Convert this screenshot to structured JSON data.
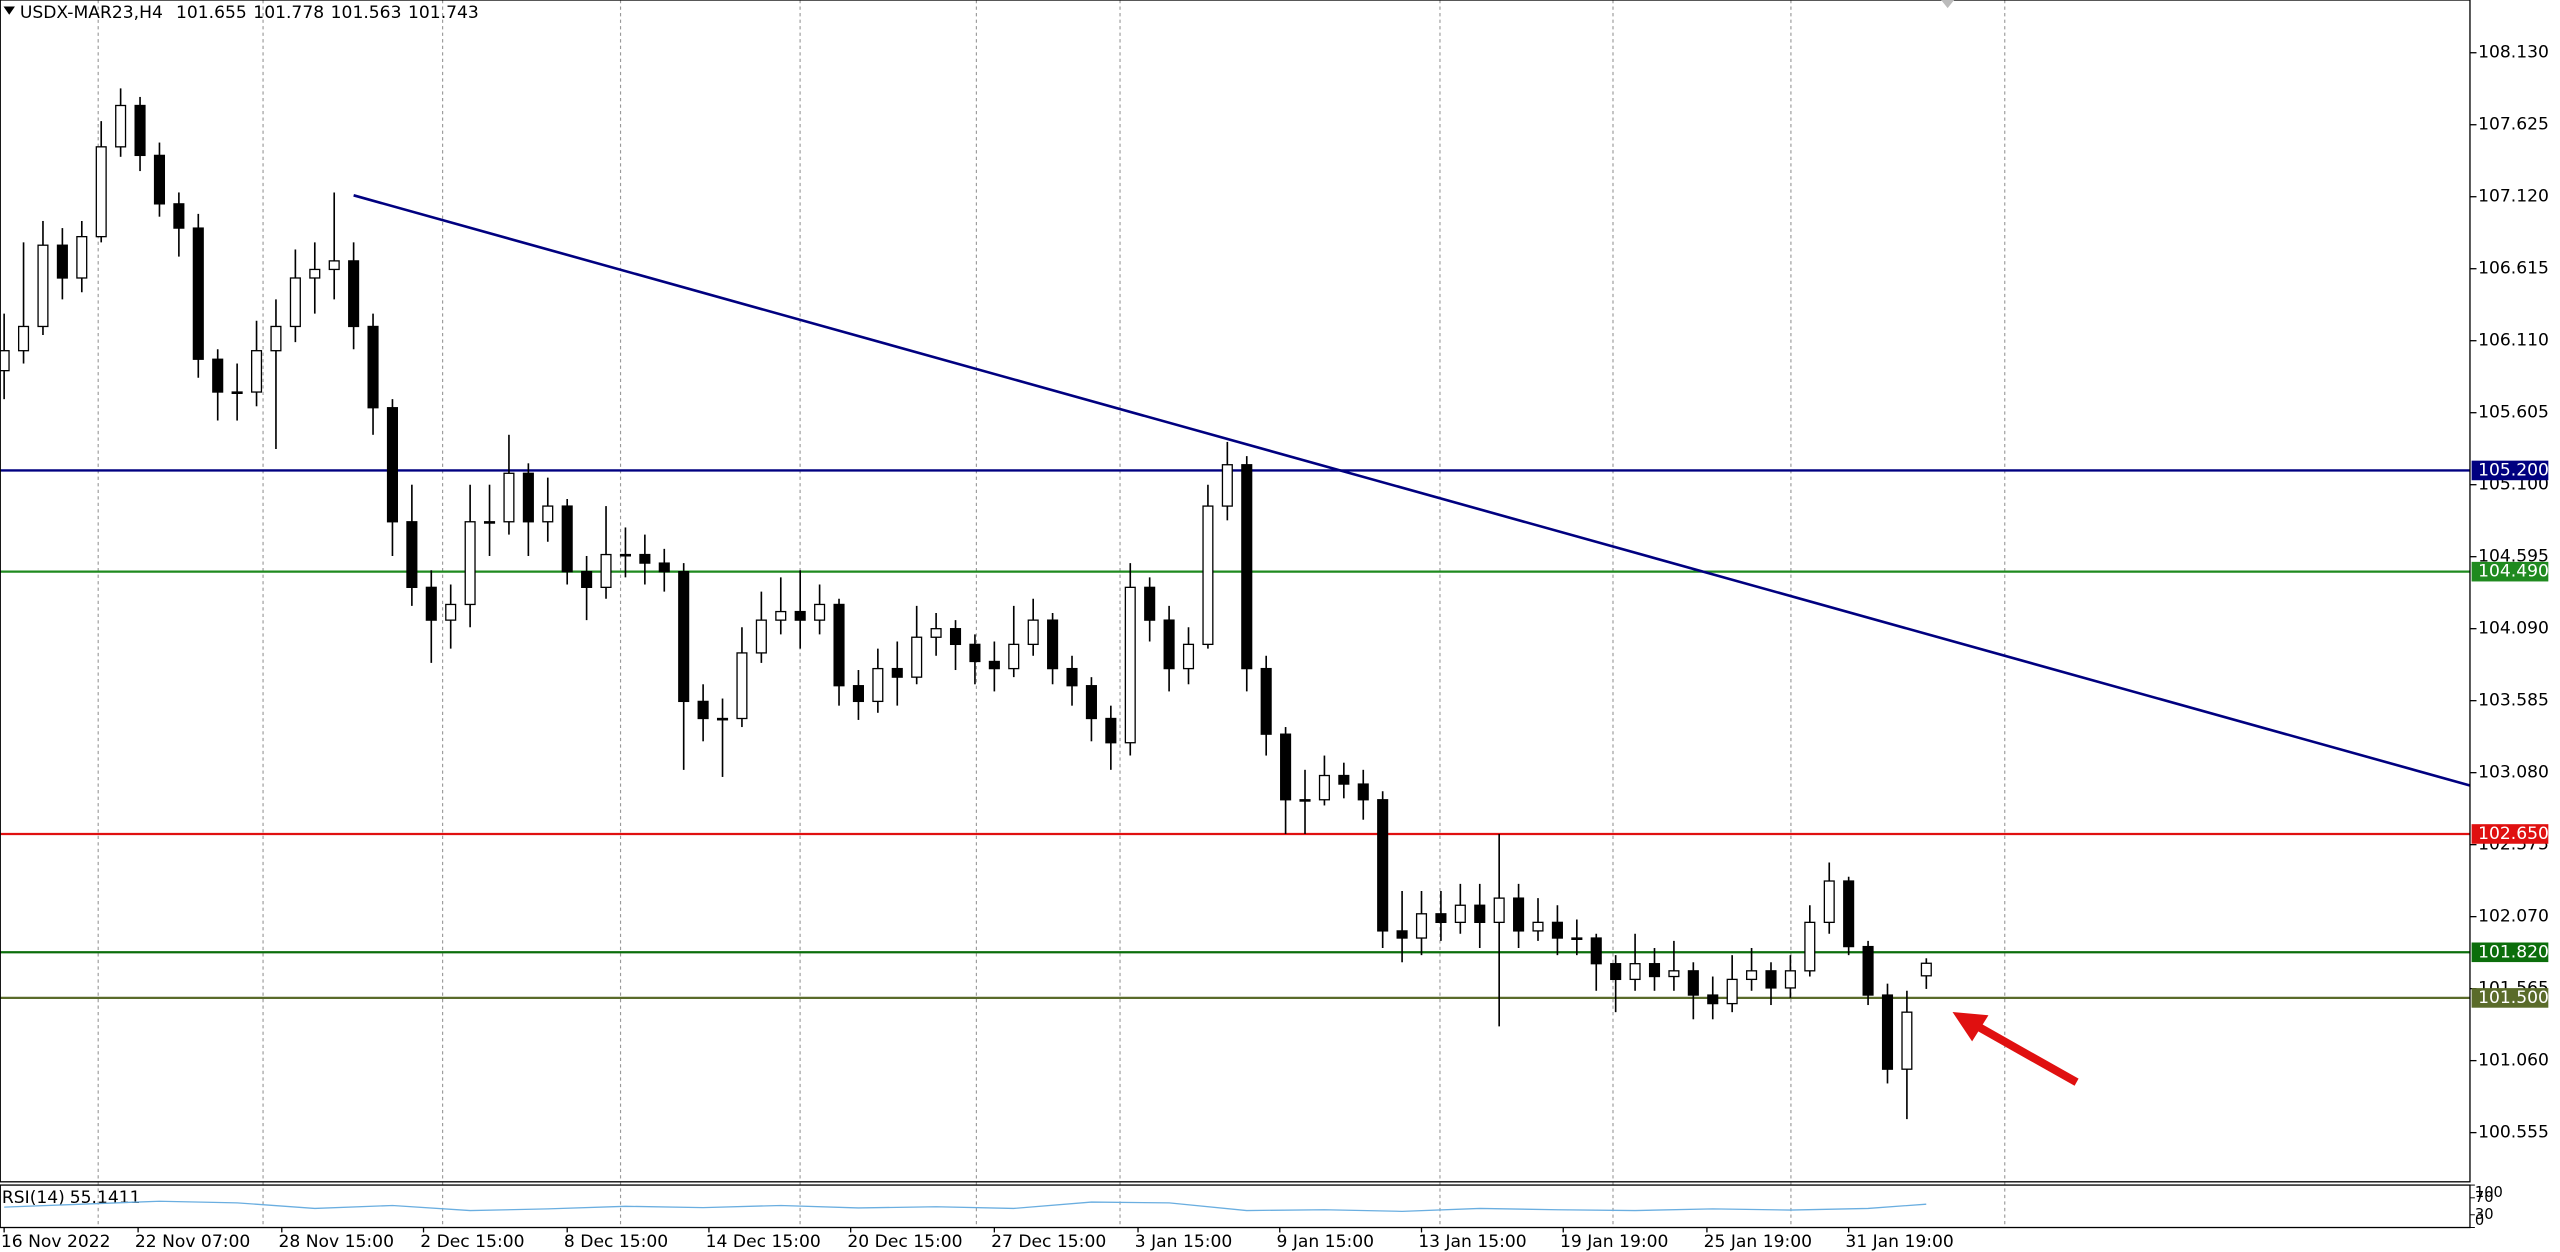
{
  "chart_data": {
    "type": "candlestick",
    "symbol": "USDX-MAR23,H4",
    "ylim": [
      100.21,
      108.5
    ],
    "xlim": [
      -0.2,
      127
    ],
    "yticks": [
      {
        "value": 108.13,
        "label": "108.130"
      },
      {
        "value": 107.625,
        "label": "107.625"
      },
      {
        "value": 107.12,
        "label": "107.120"
      },
      {
        "value": 106.615,
        "label": "106.615"
      },
      {
        "value": 106.11,
        "label": "106.110"
      },
      {
        "value": 105.605,
        "label": "105.605"
      },
      {
        "value": 105.1,
        "label": "105.100"
      },
      {
        "value": 104.595,
        "label": "104.595"
      },
      {
        "value": 104.09,
        "label": "104.090"
      },
      {
        "value": 103.585,
        "label": "103.585"
      },
      {
        "value": 103.08,
        "label": "103.080"
      },
      {
        "value": 102.575,
        "label": "102.575"
      },
      {
        "value": 102.07,
        "label": "102.070"
      },
      {
        "value": 101.565,
        "label": "101.565"
      },
      {
        "value": 101.06,
        "label": "101.060"
      },
      {
        "value": 100.555,
        "label": "100.555"
      }
    ],
    "xticks": [
      {
        "value": 0,
        "label": "16 Nov 2022"
      },
      {
        "value": 6.9,
        "label": "22 Nov 07:00"
      },
      {
        "value": 14.3,
        "label": "28 Nov 15:00"
      },
      {
        "value": 21.6,
        "label": "2 Dec 15:00"
      },
      {
        "value": 29.0,
        "label": "8 Dec 15:00"
      },
      {
        "value": 36.3,
        "label": "14 Dec 15:00"
      },
      {
        "value": 43.6,
        "label": "20 Dec 15:00"
      },
      {
        "value": 51.0,
        "label": "27 Dec 15:00"
      },
      {
        "value": 58.4,
        "label": "3 Jan 15:00"
      },
      {
        "value": 65.7,
        "label": "9 Jan 15:00"
      },
      {
        "value": 73.0,
        "label": "13 Jan 15:00"
      },
      {
        "value": 80.3,
        "label": "19 Jan 19:00"
      },
      {
        "value": 87.7,
        "label": "25 Jan 19:00"
      },
      {
        "value": 95.0,
        "label": "31 Jan 19:00"
      }
    ],
    "ohlc": [
      [
        105.9,
        106.3,
        105.7,
        106.04
      ],
      [
        106.04,
        106.8,
        105.95,
        106.21
      ],
      [
        106.21,
        106.95,
        106.15,
        106.78
      ],
      [
        106.78,
        106.9,
        106.4,
        106.55
      ],
      [
        106.55,
        106.95,
        106.45,
        106.84
      ],
      [
        106.84,
        107.65,
        106.8,
        107.47
      ],
      [
        107.47,
        107.88,
        107.4,
        107.76
      ],
      [
        107.76,
        107.82,
        107.3,
        107.41
      ],
      [
        107.41,
        107.5,
        106.98,
        107.07
      ],
      [
        107.07,
        107.15,
        106.7,
        106.9
      ],
      [
        106.9,
        107.0,
        105.85,
        105.98
      ],
      [
        105.98,
        106.05,
        105.55,
        105.75
      ],
      [
        105.75,
        105.95,
        105.55,
        105.75
      ],
      [
        105.75,
        106.25,
        105.65,
        106.04
      ],
      [
        106.04,
        106.4,
        105.35,
        106.21
      ],
      [
        106.21,
        106.75,
        106.1,
        106.55
      ],
      [
        106.55,
        106.8,
        106.3,
        106.61
      ],
      [
        106.61,
        107.15,
        106.4,
        106.67
      ],
      [
        106.67,
        106.8,
        106.05,
        106.21
      ],
      [
        106.21,
        106.3,
        105.45,
        105.64
      ],
      [
        105.64,
        105.7,
        104.6,
        104.84
      ],
      [
        104.84,
        105.1,
        104.25,
        104.38
      ],
      [
        104.38,
        104.5,
        103.85,
        104.15
      ],
      [
        104.15,
        104.4,
        103.95,
        104.26
      ],
      [
        104.26,
        105.1,
        104.1,
        104.84
      ],
      [
        104.84,
        105.1,
        104.6,
        104.84
      ],
      [
        104.84,
        105.45,
        104.75,
        105.18
      ],
      [
        105.18,
        105.25,
        104.6,
        104.84
      ],
      [
        104.84,
        105.15,
        104.7,
        104.95
      ],
      [
        104.95,
        105.0,
        104.4,
        104.49
      ],
      [
        104.49,
        104.6,
        104.15,
        104.38
      ],
      [
        104.38,
        104.95,
        104.3,
        104.61
      ],
      [
        104.61,
        104.8,
        104.45,
        104.61
      ],
      [
        104.61,
        104.75,
        104.4,
        104.55
      ],
      [
        104.55,
        104.65,
        104.35,
        104.49
      ],
      [
        104.49,
        104.55,
        103.1,
        103.58
      ],
      [
        103.58,
        103.7,
        103.3,
        103.46
      ],
      [
        103.46,
        103.6,
        103.05,
        103.46
      ],
      [
        103.46,
        104.1,
        103.4,
        103.92
      ],
      [
        103.92,
        104.35,
        103.85,
        104.15
      ],
      [
        104.15,
        104.45,
        104.05,
        104.21
      ],
      [
        104.21,
        104.5,
        103.95,
        104.15
      ],
      [
        104.15,
        104.4,
        104.05,
        104.26
      ],
      [
        104.26,
        104.3,
        103.55,
        103.69
      ],
      [
        103.69,
        103.8,
        103.45,
        103.58
      ],
      [
        103.58,
        103.95,
        103.5,
        103.81
      ],
      [
        103.81,
        104.0,
        103.55,
        103.75
      ],
      [
        103.75,
        104.25,
        103.7,
        104.03
      ],
      [
        104.03,
        104.2,
        103.9,
        104.09
      ],
      [
        104.09,
        104.15,
        103.8,
        103.98
      ],
      [
        103.98,
        104.05,
        103.7,
        103.86
      ],
      [
        103.86,
        104.0,
        103.65,
        103.81
      ],
      [
        103.81,
        104.25,
        103.75,
        103.98
      ],
      [
        103.98,
        104.3,
        103.9,
        104.15
      ],
      [
        104.15,
        104.2,
        103.7,
        103.81
      ],
      [
        103.81,
        103.9,
        103.55,
        103.69
      ],
      [
        103.69,
        103.75,
        103.3,
        103.46
      ],
      [
        103.46,
        103.55,
        103.1,
        103.29
      ],
      [
        103.29,
        104.55,
        103.2,
        104.38
      ],
      [
        104.38,
        104.45,
        104.0,
        104.15
      ],
      [
        104.15,
        104.25,
        103.65,
        103.81
      ],
      [
        103.81,
        104.1,
        103.7,
        103.98
      ],
      [
        103.98,
        105.1,
        103.95,
        104.95
      ],
      [
        104.95,
        105.4,
        104.85,
        105.24
      ],
      [
        105.24,
        105.3,
        103.65,
        103.81
      ],
      [
        103.81,
        103.9,
        103.2,
        103.35
      ],
      [
        103.35,
        103.4,
        102.65,
        102.89
      ],
      [
        102.89,
        103.1,
        102.65,
        102.89
      ],
      [
        102.89,
        103.2,
        102.85,
        103.06
      ],
      [
        103.06,
        103.15,
        102.9,
        103.0
      ],
      [
        103.0,
        103.1,
        102.75,
        102.89
      ],
      [
        102.89,
        102.95,
        101.85,
        101.97
      ],
      [
        101.97,
        102.25,
        101.75,
        101.92
      ],
      [
        101.92,
        102.25,
        101.8,
        102.09
      ],
      [
        102.09,
        102.25,
        101.9,
        102.03
      ],
      [
        102.03,
        102.3,
        101.95,
        102.15
      ],
      [
        102.15,
        102.3,
        101.85,
        102.03
      ],
      [
        102.03,
        102.65,
        101.3,
        102.2
      ],
      [
        102.2,
        102.3,
        101.85,
        101.97
      ],
      [
        101.97,
        102.2,
        101.9,
        102.03
      ],
      [
        102.03,
        102.15,
        101.8,
        101.92
      ],
      [
        101.92,
        102.05,
        101.8,
        101.92
      ],
      [
        101.92,
        101.95,
        101.55,
        101.74
      ],
      [
        101.74,
        101.8,
        101.4,
        101.63
      ],
      [
        101.63,
        101.95,
        101.55,
        101.74
      ],
      [
        101.74,
        101.85,
        101.55,
        101.65
      ],
      [
        101.65,
        101.9,
        101.55,
        101.69
      ],
      [
        101.69,
        101.75,
        101.35,
        101.52
      ],
      [
        101.52,
        101.65,
        101.35,
        101.46
      ],
      [
        101.46,
        101.8,
        101.4,
        101.63
      ],
      [
        101.63,
        101.85,
        101.55,
        101.69
      ],
      [
        101.69,
        101.75,
        101.45,
        101.57
      ],
      [
        101.57,
        101.8,
        101.5,
        101.69
      ],
      [
        101.69,
        102.15,
        101.65,
        102.03
      ],
      [
        102.03,
        102.45,
        101.95,
        102.32
      ],
      [
        102.32,
        102.35,
        101.8,
        101.86
      ],
      [
        101.86,
        101.9,
        101.45,
        101.52
      ],
      [
        101.52,
        101.6,
        100.9,
        101.0
      ],
      [
        101.0,
        101.55,
        100.65,
        101.4
      ],
      [
        101.655,
        101.778,
        101.563,
        101.743
      ]
    ],
    "up_color": "#ffffff",
    "down_color": "#000000",
    "wick_color": "#000000",
    "levels": [
      {
        "value": 105.2,
        "label": "105.200",
        "color": "#000080"
      },
      {
        "value": 104.49,
        "label": "104.490",
        "color": "#1f8a1f"
      },
      {
        "value": 102.65,
        "label": "102.650",
        "color": "#e01010"
      },
      {
        "value": 101.82,
        "label": "101.820",
        "color": "#0b6e0b"
      },
      {
        "value": 101.5,
        "label": "101.500",
        "color": "#5a6b2a"
      }
    ],
    "trendline": {
      "x": [
        18,
        127
      ],
      "y": [
        107.13,
        102.99
      ],
      "color": "#000080"
    },
    "rsi": {
      "name": "RSI(14)",
      "color": "#6aaee0",
      "ylim": [
        0,
        100
      ],
      "yticks": [
        0,
        30,
        70,
        100
      ],
      "x": [
        0,
        4,
        8,
        12,
        16,
        20,
        24,
        28,
        32,
        36,
        40,
        44,
        48,
        52,
        56,
        60,
        64,
        68,
        72,
        76,
        80,
        84,
        88,
        92,
        96,
        99
      ],
      "values": [
        48,
        55,
        62,
        58,
        45,
        52,
        40,
        44,
        50,
        47,
        52,
        46,
        49,
        45,
        60,
        58,
        40,
        42,
        38,
        45,
        42,
        40,
        44,
        41,
        45,
        55.1411
      ]
    }
  }
}
